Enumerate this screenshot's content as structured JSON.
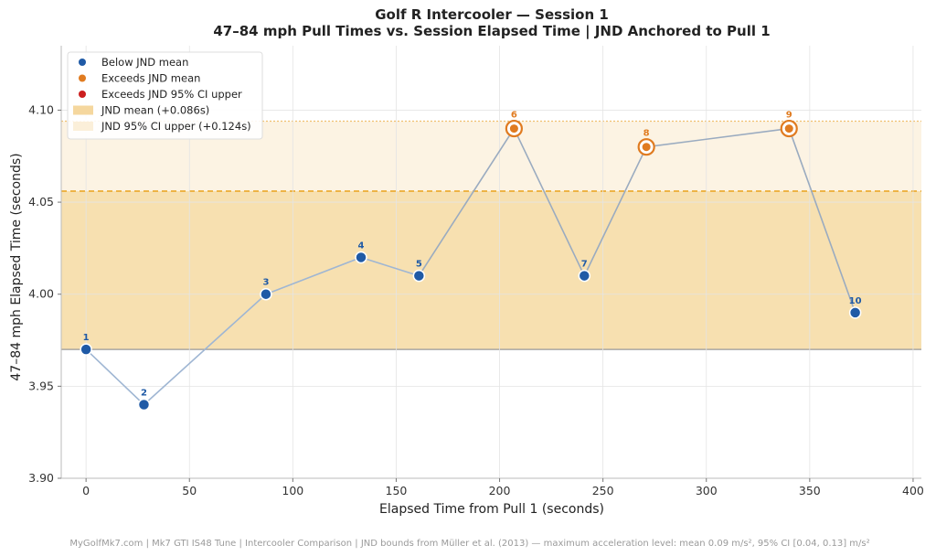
{
  "chart_data": {
    "type": "scatter",
    "title_line1": "Golf R Intercooler — Session 1",
    "title_line2": "47–84 mph Pull Times vs. Session Elapsed Time  |  JND Anchored to Pull 1",
    "xlabel": "Elapsed Time from Pull 1 (seconds)",
    "ylabel": "47–84 mph Elapsed Time (seconds)",
    "xlim": [
      -12,
      404
    ],
    "ylim": [
      3.9,
      4.135
    ],
    "xticks": [
      0,
      50,
      100,
      150,
      200,
      250,
      300,
      350,
      400
    ],
    "xtick_labels": [
      "0",
      "50",
      "100",
      "150",
      "200",
      "250",
      "300",
      "350",
      "400"
    ],
    "yticks": [
      3.9,
      3.95,
      4.0,
      4.05,
      4.1
    ],
    "ytick_labels": [
      "3.90",
      "3.95",
      "4.00",
      "4.05",
      "4.10"
    ],
    "grid": true,
    "baseline": 3.97,
    "jnd_mean_upper": 4.056,
    "jnd_ci_upper": 4.094,
    "points": [
      {
        "pull": "1",
        "x": 0,
        "y": 3.97,
        "category": "below"
      },
      {
        "pull": "2",
        "x": 28,
        "y": 3.94,
        "category": "below"
      },
      {
        "pull": "3",
        "x": 87,
        "y": 4.0,
        "category": "below"
      },
      {
        "pull": "4",
        "x": 133,
        "y": 4.02,
        "category": "below"
      },
      {
        "pull": "5",
        "x": 161,
        "y": 4.01,
        "category": "below"
      },
      {
        "pull": "6",
        "x": 207,
        "y": 4.09,
        "category": "exceeds"
      },
      {
        "pull": "7",
        "x": 241,
        "y": 4.01,
        "category": "below"
      },
      {
        "pull": "8",
        "x": 271,
        "y": 4.08,
        "category": "exceeds"
      },
      {
        "pull": "9",
        "x": 340,
        "y": 4.09,
        "category": "exceeds"
      },
      {
        "pull": "10",
        "x": 372,
        "y": 3.99,
        "category": "below"
      }
    ],
    "legend": {
      "placement": "top-left",
      "entries": [
        {
          "label": "Below JND mean",
          "kind": "dot",
          "color": "#1f5aa6"
        },
        {
          "label": "Exceeds JND mean",
          "kind": "dot",
          "color": "#e07b20"
        },
        {
          "label": "Exceeds JND 95% CI upper",
          "kind": "dot",
          "color": "#cc1f1f"
        },
        {
          "label": "JND mean  (+0.086s)",
          "kind": "band",
          "color": "#f5d79e"
        },
        {
          "label": "JND 95% CI upper  (+0.124s)",
          "kind": "band",
          "color": "#fbefd9"
        }
      ]
    },
    "colors": {
      "below": "#1f5aa6",
      "exceeds": "#e07b20",
      "exceeds_ci": "#cc1f1f",
      "band_mean": "#f7e0b0",
      "band_ci": "#fcf3e3",
      "mean_line": "#eaa21c",
      "ci_line": "#f0c070",
      "connector": "#9fb6d3",
      "baseline": "#999999"
    }
  },
  "footer": "MyGolfMk7.com  |  Mk7 GTI IS48 Tune  |  Intercooler Comparison  |  JND bounds from Müller et al. (2013) — maximum acceleration level: mean 0.09 m/s², 95% CI [0.04, 0.13] m/s²"
}
